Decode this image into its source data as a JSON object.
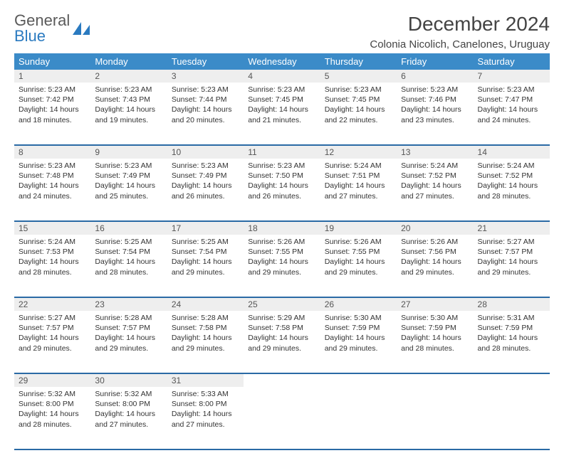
{
  "logo": {
    "text1": "General",
    "text2": "Blue"
  },
  "title": "December 2024",
  "subtitle": "Colonia Nicolich, Canelones, Uruguay",
  "colors": {
    "header_bg": "#3b8bc8",
    "header_text": "#ffffff",
    "daynum_bg": "#eeeeee",
    "row_border": "#2a6aa5",
    "logo_gray": "#5a5a5a",
    "logo_blue": "#2a7ac0"
  },
  "dayHeaders": [
    "Sunday",
    "Monday",
    "Tuesday",
    "Wednesday",
    "Thursday",
    "Friday",
    "Saturday"
  ],
  "weeks": [
    [
      {
        "n": "1",
        "sr": "5:23 AM",
        "ss": "7:42 PM",
        "dl": "14 hours and 18 minutes."
      },
      {
        "n": "2",
        "sr": "5:23 AM",
        "ss": "7:43 PM",
        "dl": "14 hours and 19 minutes."
      },
      {
        "n": "3",
        "sr": "5:23 AM",
        "ss": "7:44 PM",
        "dl": "14 hours and 20 minutes."
      },
      {
        "n": "4",
        "sr": "5:23 AM",
        "ss": "7:45 PM",
        "dl": "14 hours and 21 minutes."
      },
      {
        "n": "5",
        "sr": "5:23 AM",
        "ss": "7:45 PM",
        "dl": "14 hours and 22 minutes."
      },
      {
        "n": "6",
        "sr": "5:23 AM",
        "ss": "7:46 PM",
        "dl": "14 hours and 23 minutes."
      },
      {
        "n": "7",
        "sr": "5:23 AM",
        "ss": "7:47 PM",
        "dl": "14 hours and 24 minutes."
      }
    ],
    [
      {
        "n": "8",
        "sr": "5:23 AM",
        "ss": "7:48 PM",
        "dl": "14 hours and 24 minutes."
      },
      {
        "n": "9",
        "sr": "5:23 AM",
        "ss": "7:49 PM",
        "dl": "14 hours and 25 minutes."
      },
      {
        "n": "10",
        "sr": "5:23 AM",
        "ss": "7:49 PM",
        "dl": "14 hours and 26 minutes."
      },
      {
        "n": "11",
        "sr": "5:23 AM",
        "ss": "7:50 PM",
        "dl": "14 hours and 26 minutes."
      },
      {
        "n": "12",
        "sr": "5:24 AM",
        "ss": "7:51 PM",
        "dl": "14 hours and 27 minutes."
      },
      {
        "n": "13",
        "sr": "5:24 AM",
        "ss": "7:52 PM",
        "dl": "14 hours and 27 minutes."
      },
      {
        "n": "14",
        "sr": "5:24 AM",
        "ss": "7:52 PM",
        "dl": "14 hours and 28 minutes."
      }
    ],
    [
      {
        "n": "15",
        "sr": "5:24 AM",
        "ss": "7:53 PM",
        "dl": "14 hours and 28 minutes."
      },
      {
        "n": "16",
        "sr": "5:25 AM",
        "ss": "7:54 PM",
        "dl": "14 hours and 28 minutes."
      },
      {
        "n": "17",
        "sr": "5:25 AM",
        "ss": "7:54 PM",
        "dl": "14 hours and 29 minutes."
      },
      {
        "n": "18",
        "sr": "5:26 AM",
        "ss": "7:55 PM",
        "dl": "14 hours and 29 minutes."
      },
      {
        "n": "19",
        "sr": "5:26 AM",
        "ss": "7:55 PM",
        "dl": "14 hours and 29 minutes."
      },
      {
        "n": "20",
        "sr": "5:26 AM",
        "ss": "7:56 PM",
        "dl": "14 hours and 29 minutes."
      },
      {
        "n": "21",
        "sr": "5:27 AM",
        "ss": "7:57 PM",
        "dl": "14 hours and 29 minutes."
      }
    ],
    [
      {
        "n": "22",
        "sr": "5:27 AM",
        "ss": "7:57 PM",
        "dl": "14 hours and 29 minutes."
      },
      {
        "n": "23",
        "sr": "5:28 AM",
        "ss": "7:57 PM",
        "dl": "14 hours and 29 minutes."
      },
      {
        "n": "24",
        "sr": "5:28 AM",
        "ss": "7:58 PM",
        "dl": "14 hours and 29 minutes."
      },
      {
        "n": "25",
        "sr": "5:29 AM",
        "ss": "7:58 PM",
        "dl": "14 hours and 29 minutes."
      },
      {
        "n": "26",
        "sr": "5:30 AM",
        "ss": "7:59 PM",
        "dl": "14 hours and 29 minutes."
      },
      {
        "n": "27",
        "sr": "5:30 AM",
        "ss": "7:59 PM",
        "dl": "14 hours and 28 minutes."
      },
      {
        "n": "28",
        "sr": "5:31 AM",
        "ss": "7:59 PM",
        "dl": "14 hours and 28 minutes."
      }
    ],
    [
      {
        "n": "29",
        "sr": "5:32 AM",
        "ss": "8:00 PM",
        "dl": "14 hours and 28 minutes."
      },
      {
        "n": "30",
        "sr": "5:32 AM",
        "ss": "8:00 PM",
        "dl": "14 hours and 27 minutes."
      },
      {
        "n": "31",
        "sr": "5:33 AM",
        "ss": "8:00 PM",
        "dl": "14 hours and 27 minutes."
      },
      null,
      null,
      null,
      null
    ]
  ],
  "labels": {
    "sunrise": "Sunrise: ",
    "sunset": "Sunset: ",
    "daylight": "Daylight: "
  }
}
